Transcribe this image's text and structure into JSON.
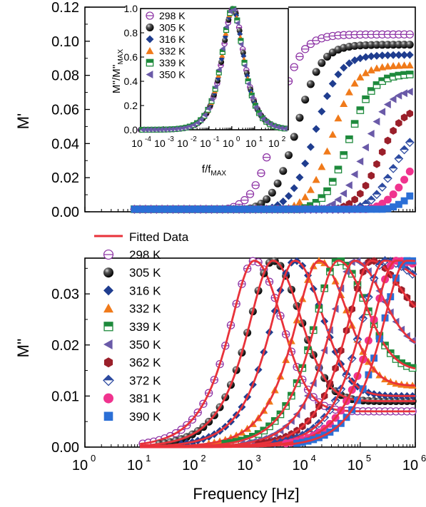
{
  "chart_data": [
    {
      "id": "top",
      "type": "scatter",
      "title": "",
      "xlabel": "",
      "ylabel": "M'",
      "xscale": "log",
      "xlim": [
        1,
        1000000
      ],
      "ylim": [
        0,
        0.12
      ],
      "yticks": [
        "0.00",
        "0.02",
        "0.04",
        "0.06",
        "0.08",
        "0.10",
        "0.12"
      ],
      "grid": false,
      "legend": "none",
      "series": [
        {
          "temp_K": 298,
          "color": "#8b2fa3",
          "marker": "hex-open",
          "f_half": 3000,
          "plateau": 0.104
        },
        {
          "temp_K": 305,
          "color": "#111111",
          "marker": "sphere",
          "f_half": 7000,
          "plateau": 0.098
        },
        {
          "temp_K": 316,
          "color": "#1f3d8f",
          "marker": "diamond",
          "f_half": 15000,
          "plateau": 0.092
        },
        {
          "temp_K": 332,
          "color": "#f07a1a",
          "marker": "triangle",
          "f_half": 30000,
          "plateau": 0.086
        },
        {
          "temp_K": 339,
          "color": "#1e8a3c",
          "marker": "square-half",
          "f_half": 60000,
          "plateau": 0.081
        },
        {
          "temp_K": 350,
          "color": "#6a5aa8",
          "marker": "triangle-left",
          "f_half": 120000,
          "plateau": 0.072
        },
        {
          "temp_K": 362,
          "color": "#9a1f2a",
          "marker": "hex",
          "f_half": 220000,
          "plateau": 0.062
        },
        {
          "temp_K": 372,
          "color": "#2c4aa0",
          "marker": "diamond-open",
          "f_half": 400000,
          "plateau": 0.051
        },
        {
          "temp_K": 381,
          "color": "#f0338e",
          "marker": "circle",
          "f_half": 700000,
          "plateau": 0.042
        },
        {
          "temp_K": 390,
          "color": "#2b6fd6",
          "marker": "square",
          "f_half": 1400000,
          "plateau": 0.038
        }
      ]
    },
    {
      "id": "inset",
      "type": "scatter",
      "title": "",
      "xlabel": "f/f",
      "xlabel_sub": "MAX",
      "ylabel": "M''/M''",
      "ylabel_sub": "MAX",
      "xscale": "log",
      "xlim": [
        0.0001,
        300
      ],
      "xticks": [
        "10",
        "10",
        "10",
        "10",
        "10",
        "10",
        "10"
      ],
      "xtick_exponents": [
        "-4",
        "-3",
        "-2",
        "-1",
        "0",
        "1",
        "2"
      ],
      "ylim": [
        0,
        1.0
      ],
      "yticks": [
        "0.0",
        "0.2",
        "0.4",
        "0.6",
        "0.8",
        "1.0"
      ],
      "grid": false,
      "legend": "top-left",
      "series": [
        {
          "name": "298 K",
          "color": "#8b2fa3",
          "marker": "hex-open"
        },
        {
          "name": "305 K",
          "color": "#111111",
          "marker": "sphere"
        },
        {
          "name": "316 K",
          "color": "#1f3d8f",
          "marker": "diamond"
        },
        {
          "name": "332 K",
          "color": "#f07a1a",
          "marker": "triangle"
        },
        {
          "name": "339 K",
          "color": "#1e8a3c",
          "marker": "square-half"
        },
        {
          "name": "350 K",
          "color": "#6a5aa8",
          "marker": "triangle-left"
        }
      ]
    },
    {
      "id": "bottom",
      "type": "scatter",
      "title": "",
      "xlabel": "Frequency [Hz]",
      "ylabel": "M''",
      "xscale": "log",
      "xlim": [
        1,
        1000000
      ],
      "xticks": [
        "10",
        "10",
        "10",
        "10",
        "10",
        "10",
        "10"
      ],
      "xtick_exponents": [
        "0",
        "1",
        "2",
        "3",
        "4",
        "5",
        "6"
      ],
      "ylim": [
        0,
        0.037
      ],
      "yticks": [
        "0.00",
        "0.01",
        "0.02",
        "0.03"
      ],
      "grid": false,
      "legend": "top-left",
      "fit_line": {
        "name": "Fitted Data",
        "color": "#e8323a"
      },
      "peak_height": 0.0365,
      "series": [
        {
          "name": "298 K",
          "color": "#8b2fa3",
          "marker": "hex-open",
          "f_peak": 1200,
          "tail": 0.007
        },
        {
          "name": "305 K",
          "color": "#111111",
          "marker": "sphere",
          "f_peak": 2600,
          "tail": 0.009
        },
        {
          "name": "316 K",
          "color": "#1f3d8f",
          "marker": "diamond",
          "f_peak": 6500,
          "tail": 0.01
        },
        {
          "name": "332 K",
          "color": "#f07a1a",
          "marker": "triangle",
          "f_peak": 18000,
          "tail": 0.012
        },
        {
          "name": "339 K",
          "color": "#1e8a3c",
          "marker": "square-half",
          "f_peak": 40000,
          "tail": 0.015
        },
        {
          "name": "350 K",
          "color": "#6a5aa8",
          "marker": "triangle-left",
          "f_peak": 80000,
          "tail": 0.019
        },
        {
          "name": "362 K",
          "color": "#9a1f2a",
          "marker": "hex",
          "f_peak": 160000,
          "tail": 0.024
        },
        {
          "name": "372 K",
          "color": "#2c4aa0",
          "marker": "diamond-open",
          "f_peak": 280000,
          "tail": 0.03
        },
        {
          "name": "381 K",
          "color": "#f0338e",
          "marker": "circle",
          "f_peak": 450000,
          "tail": 0.033
        },
        {
          "name": "390 K",
          "color": "#2b6fd6",
          "marker": "square",
          "f_peak": 700000,
          "tail": 0.035
        }
      ]
    }
  ]
}
